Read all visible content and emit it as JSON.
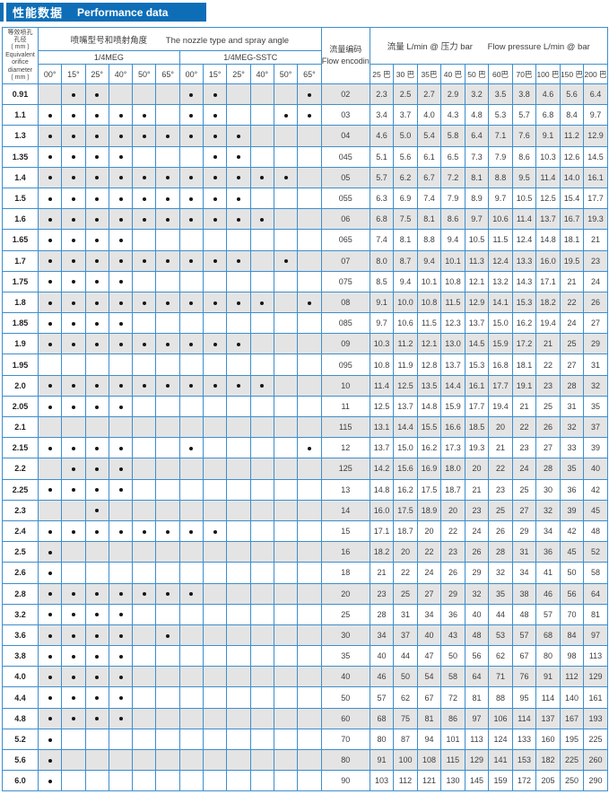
{
  "banner": {
    "title_zh": "性能数据",
    "title_en": "Performance data"
  },
  "colors": {
    "banner_blue": "#0d6eb7",
    "border_blue": "#3d8ecd",
    "stripe_gray": "#e4e4e4",
    "dot_black": "#161616"
  },
  "table": {
    "header": {
      "orifice_lines": [
        "等效喷孔",
        "孔径",
        "( mm )",
        "Equivalent",
        "orifice",
        "diameter",
        "( mm )"
      ],
      "nozzle_zh": "喷嘴型号和喷射角度",
      "nozzle_en": "The nozzle type and spray angle",
      "group1": "1/4MEG",
      "group2": "1/4MEG-SSTC",
      "angles": [
        "00°",
        "15°",
        "25°",
        "40°",
        "50°",
        "65°"
      ],
      "flow_encoding_zh": "流量编码",
      "flow_encoding_en": "Flow encoding",
      "flow_zh": "流量 L/min @ 压力 bar",
      "flow_en": "Flow pressure L/min @ bar",
      "pressures": [
        "25 巴",
        "30 巴",
        "35巴",
        "40 巴",
        "50 巴",
        "60巴",
        "70巴",
        "100 巴",
        "150 巴",
        "200 巴"
      ]
    },
    "rows": [
      {
        "diameter": "0.91",
        "dots": [
          0,
          1,
          1,
          0,
          0,
          0,
          1,
          1,
          0,
          0,
          0,
          1
        ],
        "code": "02",
        "values": [
          "2.3",
          "2.5",
          "2.7",
          "2.9",
          "3.2",
          "3.5",
          "3.8",
          "4.6",
          "5.6",
          "6.4"
        ]
      },
      {
        "diameter": "1.1",
        "dots": [
          1,
          1,
          1,
          1,
          1,
          0,
          1,
          1,
          0,
          0,
          1,
          1
        ],
        "code": "03",
        "values": [
          "3.4",
          "3.7",
          "4.0",
          "4.3",
          "4.8",
          "5.3",
          "5.7",
          "6.8",
          "8.4",
          "9.7"
        ]
      },
      {
        "diameter": "1.3",
        "dots": [
          1,
          1,
          1,
          1,
          1,
          1,
          1,
          1,
          1,
          0,
          0,
          0
        ],
        "code": "04",
        "values": [
          "4.6",
          "5.0",
          "5.4",
          "5.8",
          "6.4",
          "7.1",
          "7.6",
          "9.1",
          "11.2",
          "12.9"
        ]
      },
      {
        "diameter": "1.35",
        "dots": [
          1,
          1,
          1,
          1,
          0,
          0,
          0,
          1,
          1,
          0,
          0,
          0
        ],
        "code": "045",
        "values": [
          "5.1",
          "5.6",
          "6.1",
          "6.5",
          "7.3",
          "7.9",
          "8.6",
          "10.3",
          "12.6",
          "14.5"
        ]
      },
      {
        "diameter": "1.4",
        "dots": [
          1,
          1,
          1,
          1,
          1,
          1,
          1,
          1,
          1,
          1,
          1,
          0
        ],
        "code": "05",
        "values": [
          "5.7",
          "6.2",
          "6.7",
          "7.2",
          "8.1",
          "8.8",
          "9.5",
          "11.4",
          "14.0",
          "16.1"
        ]
      },
      {
        "diameter": "1.5",
        "dots": [
          1,
          1,
          1,
          1,
          1,
          1,
          1,
          1,
          1,
          0,
          0,
          0
        ],
        "code": "055",
        "values": [
          "6.3",
          "6.9",
          "7.4",
          "7.9",
          "8.9",
          "9.7",
          "10.5",
          "12.5",
          "15.4",
          "17.7"
        ]
      },
      {
        "diameter": "1.6",
        "dots": [
          1,
          1,
          1,
          1,
          1,
          1,
          1,
          1,
          1,
          1,
          0,
          0
        ],
        "code": "06",
        "values": [
          "6.8",
          "7.5",
          "8.1",
          "8.6",
          "9.7",
          "10.6",
          "11.4",
          "13.7",
          "16.7",
          "19.3"
        ]
      },
      {
        "diameter": "1.65",
        "dots": [
          1,
          1,
          1,
          1,
          0,
          0,
          0,
          0,
          0,
          0,
          0,
          0
        ],
        "code": "065",
        "values": [
          "7.4",
          "8.1",
          "8.8",
          "9.4",
          "10.5",
          "11.5",
          "12.4",
          "14.8",
          "18.1",
          "21"
        ]
      },
      {
        "diameter": "1.7",
        "dots": [
          1,
          1,
          1,
          1,
          1,
          1,
          1,
          1,
          1,
          0,
          1,
          0
        ],
        "code": "07",
        "values": [
          "8.0",
          "8.7",
          "9.4",
          "10.1",
          "11.3",
          "12.4",
          "13.3",
          "16.0",
          "19.5",
          "23"
        ]
      },
      {
        "diameter": "1.75",
        "dots": [
          1,
          1,
          1,
          1,
          0,
          0,
          0,
          0,
          0,
          0,
          0,
          0
        ],
        "code": "075",
        "values": [
          "8.5",
          "9.4",
          "10.1",
          "10.8",
          "12.1",
          "13.2",
          "14.3",
          "17.1",
          "21",
          "24"
        ]
      },
      {
        "diameter": "1.8",
        "dots": [
          1,
          1,
          1,
          1,
          1,
          1,
          1,
          1,
          1,
          1,
          0,
          1
        ],
        "code": "08",
        "values": [
          "9.1",
          "10.0",
          "10.8",
          "11.5",
          "12.9",
          "14.1",
          "15.3",
          "18.2",
          "22",
          "26"
        ]
      },
      {
        "diameter": "1.85",
        "dots": [
          1,
          1,
          1,
          1,
          0,
          0,
          0,
          0,
          0,
          0,
          0,
          0
        ],
        "code": "085",
        "values": [
          "9.7",
          "10.6",
          "11.5",
          "12.3",
          "13.7",
          "15.0",
          "16.2",
          "19.4",
          "24",
          "27"
        ]
      },
      {
        "diameter": "1.9",
        "dots": [
          1,
          1,
          1,
          1,
          1,
          1,
          1,
          1,
          1,
          0,
          0,
          0
        ],
        "code": "09",
        "values": [
          "10.3",
          "11.2",
          "12.1",
          "13.0",
          "14.5",
          "15.9",
          "17.2",
          "21",
          "25",
          "29"
        ]
      },
      {
        "diameter": "1.95",
        "dots": [
          0,
          0,
          0,
          0,
          0,
          0,
          0,
          0,
          0,
          0,
          0,
          0
        ],
        "code": "095",
        "values": [
          "10.8",
          "11.9",
          "12.8",
          "13.7",
          "15.3",
          "16.8",
          "18.1",
          "22",
          "27",
          "31"
        ]
      },
      {
        "diameter": "2.0",
        "dots": [
          1,
          1,
          1,
          1,
          1,
          1,
          1,
          1,
          1,
          1,
          0,
          0
        ],
        "code": "10",
        "values": [
          "11.4",
          "12.5",
          "13.5",
          "14.4",
          "16.1",
          "17.7",
          "19.1",
          "23",
          "28",
          "32"
        ]
      },
      {
        "diameter": "2.05",
        "dots": [
          1,
          1,
          1,
          1,
          0,
          0,
          0,
          0,
          0,
          0,
          0,
          0
        ],
        "code": "11",
        "values": [
          "12.5",
          "13.7",
          "14.8",
          "15.9",
          "17.7",
          "19.4",
          "21",
          "25",
          "31",
          "35"
        ]
      },
      {
        "diameter": "2.1",
        "dots": [
          0,
          0,
          0,
          0,
          0,
          0,
          0,
          0,
          0,
          0,
          0,
          0
        ],
        "code": "115",
        "values": [
          "13.1",
          "14.4",
          "15.5",
          "16.6",
          "18.5",
          "20",
          "22",
          "26",
          "32",
          "37"
        ]
      },
      {
        "diameter": "2.15",
        "dots": [
          1,
          1,
          1,
          1,
          0,
          0,
          1,
          0,
          0,
          0,
          0,
          1
        ],
        "code": "12",
        "values": [
          "13.7",
          "15.0",
          "16.2",
          "17.3",
          "19.3",
          "21",
          "23",
          "27",
          "33",
          "39"
        ]
      },
      {
        "diameter": "2.2",
        "dots": [
          0,
          1,
          1,
          1,
          0,
          0,
          0,
          0,
          0,
          0,
          0,
          0
        ],
        "code": "125",
        "values": [
          "14.2",
          "15.6",
          "16.9",
          "18.0",
          "20",
          "22",
          "24",
          "28",
          "35",
          "40"
        ]
      },
      {
        "diameter": "2.25",
        "dots": [
          1,
          1,
          1,
          1,
          0,
          0,
          0,
          0,
          0,
          0,
          0,
          0
        ],
        "code": "13",
        "values": [
          "14.8",
          "16.2",
          "17.5",
          "18.7",
          "21",
          "23",
          "25",
          "30",
          "36",
          "42"
        ]
      },
      {
        "diameter": "2.3",
        "dots": [
          0,
          0,
          1,
          0,
          0,
          0,
          0,
          0,
          0,
          0,
          0,
          0
        ],
        "code": "14",
        "values": [
          "16.0",
          "17.5",
          "18.9",
          "20",
          "23",
          "25",
          "27",
          "32",
          "39",
          "45"
        ]
      },
      {
        "diameter": "2.4",
        "dots": [
          1,
          1,
          1,
          1,
          1,
          1,
          1,
          1,
          0,
          0,
          0,
          0
        ],
        "code": "15",
        "values": [
          "17.1",
          "18.7",
          "20",
          "22",
          "24",
          "26",
          "29",
          "34",
          "42",
          "48"
        ]
      },
      {
        "diameter": "2.5",
        "dots": [
          1,
          0,
          0,
          0,
          0,
          0,
          0,
          0,
          0,
          0,
          0,
          0
        ],
        "code": "16",
        "values": [
          "18.2",
          "20",
          "22",
          "23",
          "26",
          "28",
          "31",
          "36",
          "45",
          "52"
        ]
      },
      {
        "diameter": "2.6",
        "dots": [
          1,
          0,
          0,
          0,
          0,
          0,
          0,
          0,
          0,
          0,
          0,
          0
        ],
        "code": "18",
        "values": [
          "21",
          "22",
          "24",
          "26",
          "29",
          "32",
          "34",
          "41",
          "50",
          "58"
        ]
      },
      {
        "diameter": "2.8",
        "dots": [
          1,
          1,
          1,
          1,
          1,
          1,
          1,
          0,
          0,
          0,
          0,
          0
        ],
        "code": "20",
        "values": [
          "23",
          "25",
          "27",
          "29",
          "32",
          "35",
          "38",
          "46",
          "56",
          "64"
        ]
      },
      {
        "diameter": "3.2",
        "dots": [
          1,
          1,
          1,
          1,
          0,
          0,
          0,
          0,
          0,
          0,
          0,
          0
        ],
        "code": "25",
        "values": [
          "28",
          "31",
          "34",
          "36",
          "40",
          "44",
          "48",
          "57",
          "70",
          "81"
        ]
      },
      {
        "diameter": "3.6",
        "dots": [
          1,
          1,
          1,
          1,
          0,
          1,
          0,
          0,
          0,
          0,
          0,
          0
        ],
        "code": "30",
        "values": [
          "34",
          "37",
          "40",
          "43",
          "48",
          "53",
          "57",
          "68",
          "84",
          "97"
        ]
      },
      {
        "diameter": "3.8",
        "dots": [
          1,
          1,
          1,
          1,
          0,
          0,
          0,
          0,
          0,
          0,
          0,
          0
        ],
        "code": "35",
        "values": [
          "40",
          "44",
          "47",
          "50",
          "56",
          "62",
          "67",
          "80",
          "98",
          "113"
        ]
      },
      {
        "diameter": "4.0",
        "dots": [
          1,
          1,
          1,
          1,
          0,
          0,
          0,
          0,
          0,
          0,
          0,
          0
        ],
        "code": "40",
        "values": [
          "46",
          "50",
          "54",
          "58",
          "64",
          "71",
          "76",
          "91",
          "112",
          "129"
        ]
      },
      {
        "diameter": "4.4",
        "dots": [
          1,
          1,
          1,
          1,
          0,
          0,
          0,
          0,
          0,
          0,
          0,
          0
        ],
        "code": "50",
        "values": [
          "57",
          "62",
          "67",
          "72",
          "81",
          "88",
          "95",
          "114",
          "140",
          "161"
        ]
      },
      {
        "diameter": "4.8",
        "dots": [
          1,
          1,
          1,
          1,
          0,
          0,
          0,
          0,
          0,
          0,
          0,
          0
        ],
        "code": "60",
        "values": [
          "68",
          "75",
          "81",
          "86",
          "97",
          "106",
          "114",
          "137",
          "167",
          "193"
        ]
      },
      {
        "diameter": "5.2",
        "dots": [
          1,
          0,
          0,
          0,
          0,
          0,
          0,
          0,
          0,
          0,
          0,
          0
        ],
        "code": "70",
        "values": [
          "80",
          "87",
          "94",
          "101",
          "113",
          "124",
          "133",
          "160",
          "195",
          "225"
        ]
      },
      {
        "diameter": "5.6",
        "dots": [
          1,
          0,
          0,
          0,
          0,
          0,
          0,
          0,
          0,
          0,
          0,
          0
        ],
        "code": "80",
        "values": [
          "91",
          "100",
          "108",
          "115",
          "129",
          "141",
          "153",
          "182",
          "225",
          "260"
        ]
      },
      {
        "diameter": "6.0",
        "dots": [
          1,
          0,
          0,
          0,
          0,
          0,
          0,
          0,
          0,
          0,
          0,
          0
        ],
        "code": "90",
        "values": [
          "103",
          "112",
          "121",
          "130",
          "145",
          "159",
          "172",
          "205",
          "250",
          "290"
        ]
      }
    ]
  }
}
